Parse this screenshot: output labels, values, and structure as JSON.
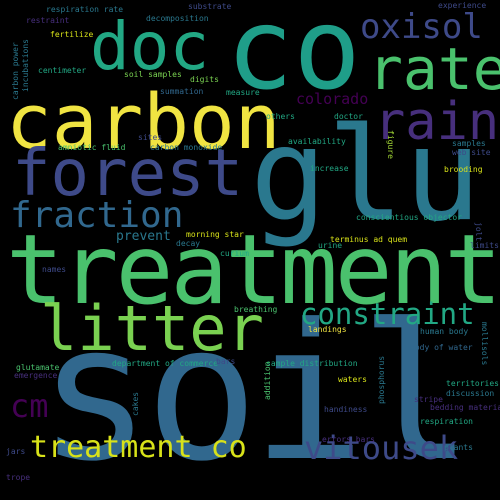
{
  "colors": {
    "background": "#000000",
    "yellow": "#f0e442",
    "yellow2": "#d8e219",
    "yellow_green": "#a5db36",
    "light_green": "#7ad151",
    "green": "#4ac16d",
    "teal": "#22a884",
    "teal2": "#1f9e89",
    "blue_teal": "#2a788e",
    "blue": "#31688e",
    "indigo": "#3e4a89",
    "purple": "#472f7d",
    "dark_purple": "#440154"
  },
  "words": {
    "soil": "soil",
    "co": "co",
    "glu": "glu",
    "treatment": "treatment",
    "carbon": "carbon",
    "forest": "forest",
    "litter": "litter",
    "doc": "doc",
    "rate": "rate",
    "rain": "rain",
    "oxisol": "oxisol",
    "fraction": "fraction",
    "constraint": "constraint",
    "treatment_co": "treatment co",
    "vitousek": "vitousek",
    "cm": "cm",
    "colorado": "colorado",
    "prevent": "prevent",
    "respiration_rate": "respiration rate",
    "substrate": "substrate",
    "experience": "experience",
    "restraint": "restraint",
    "decomposition": "decomposition",
    "fertilize": "fertilize",
    "centimeter": "centimeter",
    "soil_samples": "soil samples",
    "digits": "digits",
    "incubations": "incubations",
    "carbon_power": "carbon power",
    "summation": "summation",
    "measure": "measure",
    "amniotic_fluid": "amniotic fluid",
    "sites": "sites",
    "carbon_monoxide": "carbon monoxide",
    "others": "others",
    "doctor": "doctor",
    "availability": "availability",
    "figure": "figure",
    "samples": "samples",
    "web_site": "web site",
    "increase": "increase",
    "brooding": "brooding",
    "conscientious_objector": "conscientious objector",
    "morning_star": "morning star",
    "decay": "decay",
    "terminus_ad_quem": "terminus ad quem",
    "urine": "urine",
    "limits": "limits",
    "jolt": "jolt",
    "names": "names",
    "breathing": "breathing",
    "landings": "landings",
    "human_body": "human body",
    "body_of_water": "body of water",
    "mollisols": "mollisols",
    "glutamate": "glutamate",
    "emergence": "emergence",
    "department_of_commerce": "department of commerce",
    "bars": "bars",
    "sample_distribution": "sample distribution",
    "curium": "curium",
    "waters": "waters",
    "territories": "territories",
    "discussion": "discussion",
    "stripe": "stripe",
    "bedding_material": "bedding material",
    "handiness": "handiness",
    "phosphorus": "phosphorus",
    "addition": "addition",
    "respiration": "respiration",
    "cakes": "cakes",
    "plants": "plants",
    "errors_bars": "errors bars",
    "jars": "jars",
    "trope": "trope"
  }
}
